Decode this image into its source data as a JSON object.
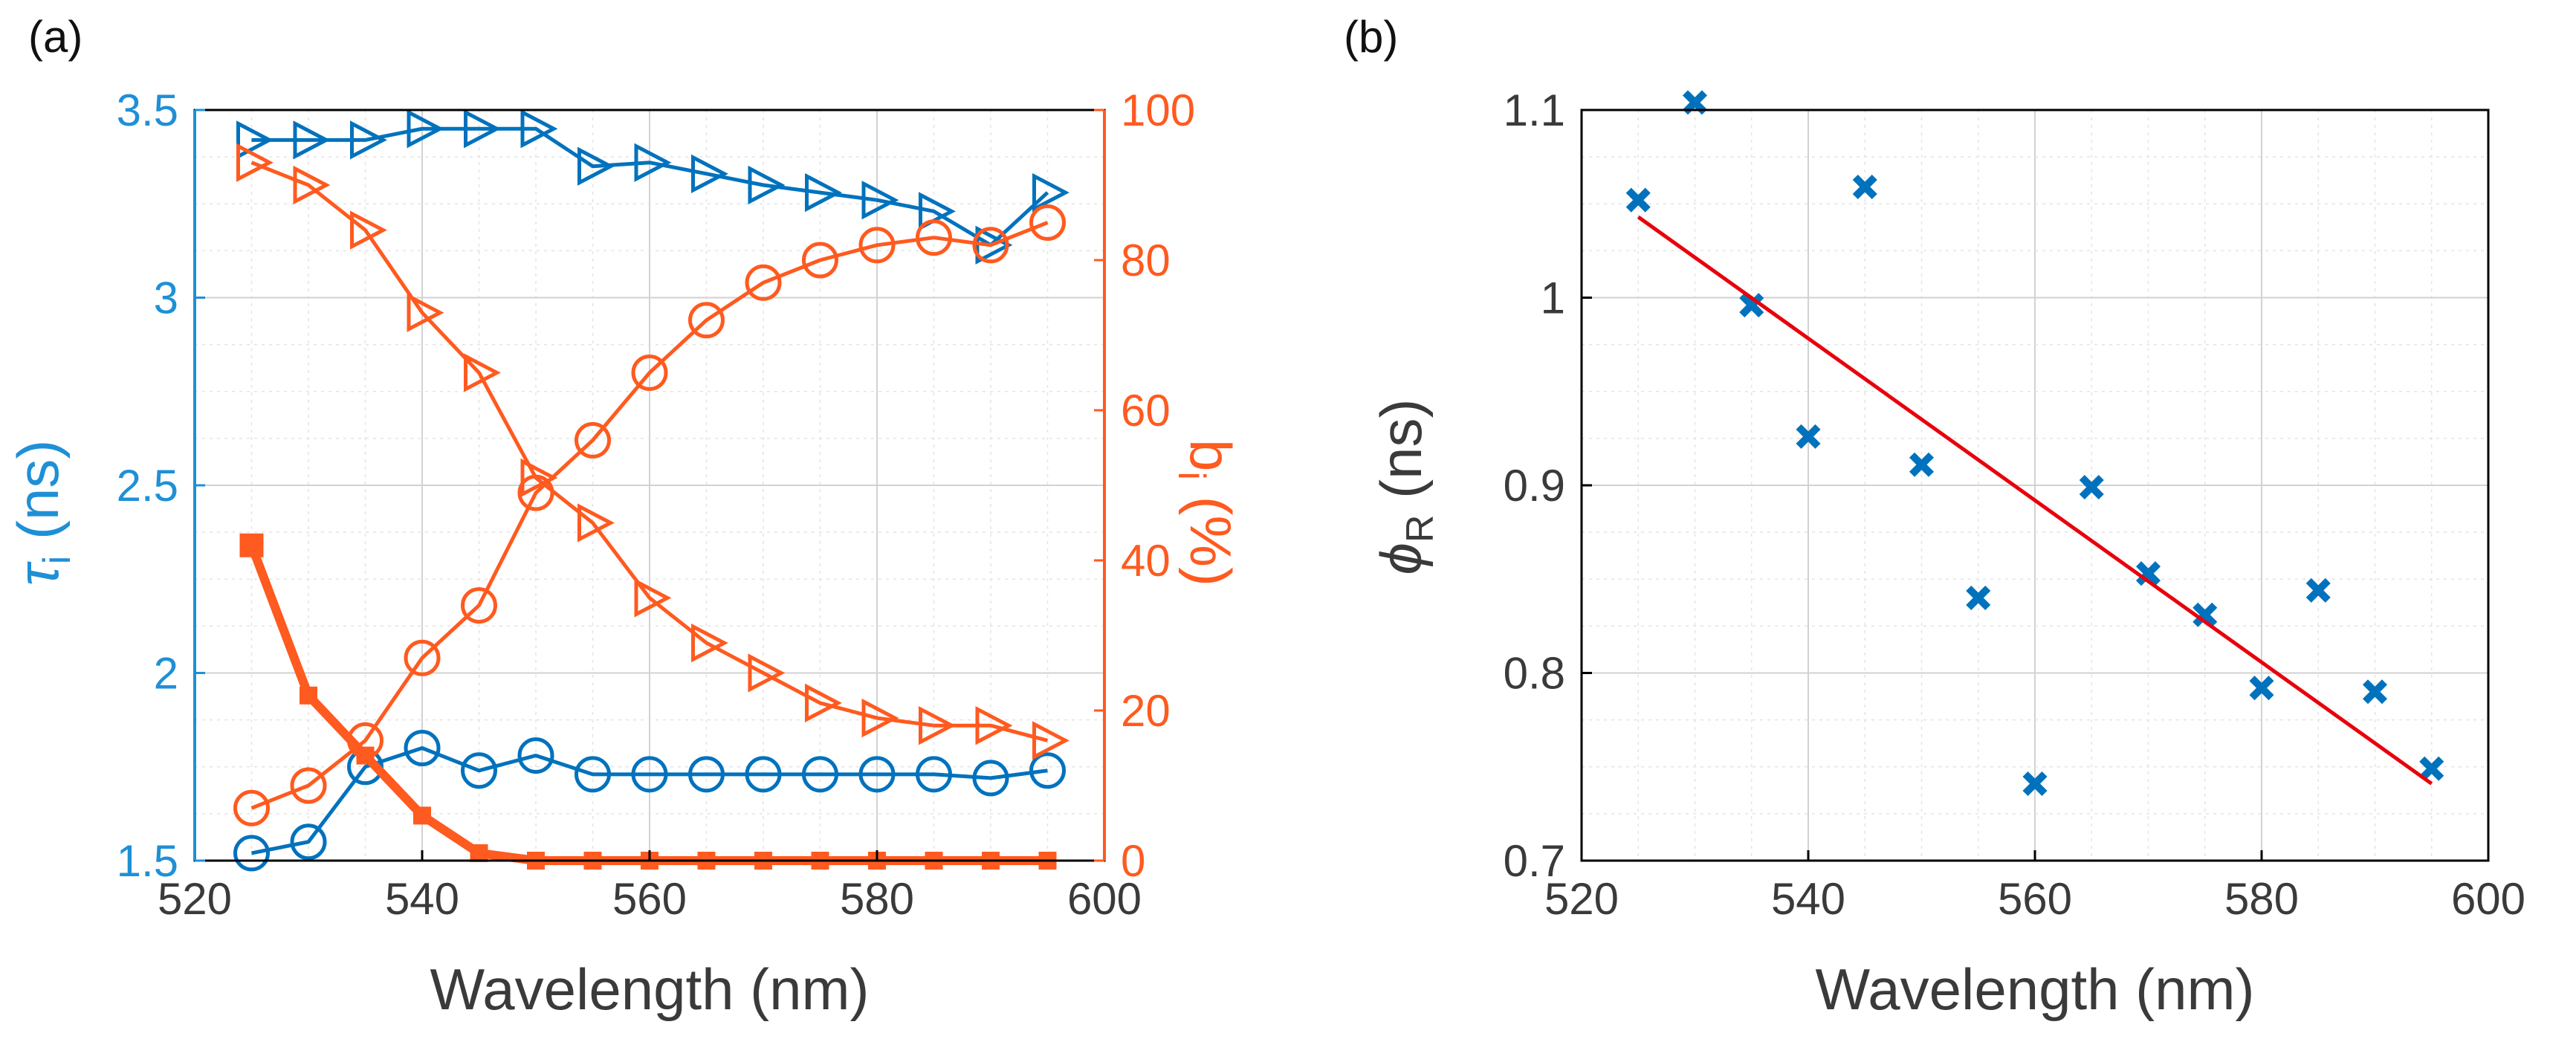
{
  "colors": {
    "blue": "#0072BD",
    "orange": "#FF5A1F",
    "red": "#E8000B",
    "grid": "#C8C8C8"
  },
  "chart_data": [
    {
      "panel_label": "(a)",
      "type": "line",
      "xlabel": "Wavelength (nm)",
      "xlim": [
        520,
        600
      ],
      "xticks": [
        "520",
        "540",
        "560",
        "580",
        "600"
      ],
      "ylabel_left": {
        "symbol": "τ",
        "sub": "i",
        "rest": " (ns)"
      },
      "ylim_left": [
        1.5,
        3.5
      ],
      "yticks_left": [
        "1.5",
        "2",
        "2.5",
        "3",
        "3.5"
      ],
      "ylabel_right": {
        "symbol": "b",
        "sub": "i",
        "rest": " (%)"
      },
      "ylim_right": [
        0,
        100
      ],
      "yticks_right": [
        "0",
        "20",
        "40",
        "60",
        "80",
        "100"
      ],
      "grid": true,
      "series": [
        {
          "name": "tau_long",
          "axis": "left",
          "color": "blue",
          "marker": "triangle-right",
          "x": [
            525,
            530,
            535,
            540,
            545,
            550,
            555,
            560,
            565,
            570,
            575,
            580,
            585,
            590,
            595
          ],
          "values": [
            3.42,
            3.42,
            3.42,
            3.45,
            3.45,
            3.45,
            3.35,
            3.36,
            3.33,
            3.3,
            3.28,
            3.26,
            3.23,
            3.14,
            3.28
          ]
        },
        {
          "name": "tau_short",
          "axis": "left",
          "color": "blue",
          "marker": "circle",
          "x": [
            525,
            530,
            535,
            540,
            545,
            550,
            555,
            560,
            565,
            570,
            575,
            580,
            585,
            590,
            595
          ],
          "values": [
            1.52,
            1.55,
            1.75,
            1.8,
            1.74,
            1.78,
            1.73,
            1.73,
            1.73,
            1.73,
            1.73,
            1.73,
            1.73,
            1.72,
            1.74
          ]
        },
        {
          "name": "b_long",
          "axis": "right",
          "color": "orange",
          "marker": "triangle-right",
          "x": [
            525,
            530,
            535,
            540,
            545,
            550,
            555,
            560,
            565,
            570,
            575,
            580,
            585,
            590,
            595
          ],
          "values": [
            93,
            90,
            84,
            73,
            65,
            51,
            45,
            35,
            29,
            25,
            21,
            19,
            18,
            18,
            16
          ]
        },
        {
          "name": "b_short",
          "axis": "right",
          "color": "orange",
          "marker": "circle",
          "x": [
            525,
            530,
            535,
            540,
            545,
            550,
            555,
            560,
            565,
            570,
            575,
            580,
            585,
            590,
            595
          ],
          "values": [
            7,
            10,
            16,
            27,
            34,
            49,
            56,
            65,
            72,
            77,
            80,
            82,
            83,
            82,
            85
          ]
        },
        {
          "name": "b_third",
          "axis": "right",
          "color": "orange",
          "marker": "square",
          "thick": true,
          "x": [
            525,
            530,
            535,
            540,
            545,
            550,
            555,
            560,
            565,
            570,
            575,
            580,
            585,
            590,
            595
          ],
          "values": [
            42,
            22,
            14,
            6,
            1,
            0,
            0,
            0,
            0,
            0,
            0,
            0,
            0,
            0,
            0
          ]
        }
      ]
    },
    {
      "panel_label": "(b)",
      "type": "scatter",
      "xlabel": "Wavelength (nm)",
      "xlim": [
        520,
        600
      ],
      "xticks": [
        "520",
        "540",
        "560",
        "580",
        "600"
      ],
      "ylabel": {
        "symbol": "ϕ",
        "sub": "R",
        "rest": " (ns)"
      },
      "ylim": [
        0.7,
        1.1
      ],
      "yticks": [
        "0.7",
        "0.8",
        "0.9",
        "1",
        "1.1"
      ],
      "grid": true,
      "series": [
        {
          "name": "measured",
          "color": "blue",
          "marker": "x",
          "x": [
            525,
            530,
            535,
            540,
            545,
            550,
            555,
            560,
            565,
            570,
            575,
            580,
            585,
            590,
            595
          ],
          "values": [
            1.052,
            1.104,
            0.996,
            0.926,
            1.059,
            0.911,
            0.84,
            0.741,
            0.899,
            0.853,
            0.831,
            0.792,
            0.844,
            0.79,
            0.749
          ]
        },
        {
          "name": "linear-fit",
          "color": "red",
          "marker": "none",
          "x": [
            525,
            595
          ],
          "values": [
            1.043,
            0.741
          ]
        }
      ]
    }
  ]
}
